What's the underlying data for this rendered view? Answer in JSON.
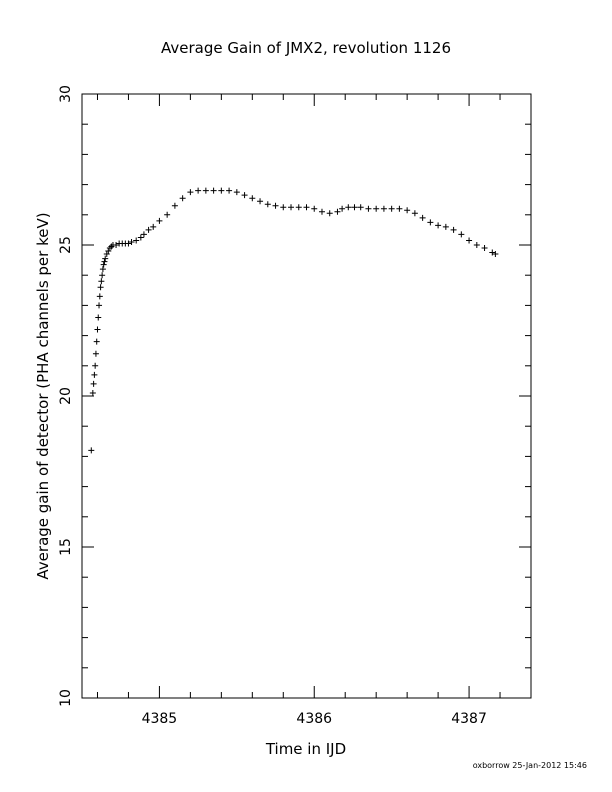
{
  "chart_data": {
    "type": "scatter",
    "title": "Average Gain of JMX2, revolution 1126",
    "xlabel": "Time in IJD",
    "ylabel": "Average gain of detector (PHA channels per keV)",
    "xlim": [
      4384.5,
      4387.4
    ],
    "ylim": [
      10,
      30
    ],
    "xticks": [
      4385,
      4386,
      4387
    ],
    "yticks": [
      10,
      15,
      20,
      25,
      30
    ],
    "grid": false,
    "legend": "none",
    "marker": "plus",
    "color": "#000000",
    "series": [
      {
        "x": [
          4384.56,
          4384.57,
          4384.575,
          4384.58,
          4384.585,
          4384.59,
          4384.595,
          4384.6,
          4384.605,
          4384.61,
          4384.615,
          4384.62,
          4384.625,
          4384.63,
          4384.635,
          4384.64,
          4384.645,
          4384.65,
          4384.66,
          4384.67,
          4384.68,
          4384.69,
          4384.7,
          4384.72,
          4384.74,
          4384.76,
          4384.78,
          4384.8,
          4384.82,
          4384.85,
          4384.88,
          4384.9,
          4384.93,
          4384.96,
          4385.0,
          4385.05,
          4385.1,
          4385.15,
          4385.2,
          4385.25,
          4385.3,
          4385.35,
          4385.4,
          4385.45,
          4385.5,
          4385.55,
          4385.6,
          4385.65,
          4385.7,
          4385.75,
          4385.8,
          4385.85,
          4385.9,
          4385.95,
          4386.0,
          4386.05,
          4386.1,
          4386.15,
          4386.18,
          4386.22,
          4386.26,
          4386.3,
          4386.35,
          4386.4,
          4386.45,
          4386.5,
          4386.55,
          4386.6,
          4386.65,
          4386.7,
          4386.75,
          4386.8,
          4386.85,
          4386.9,
          4386.95,
          4387.0,
          4387.05,
          4387.1,
          4387.15,
          4387.17
        ],
        "y": [
          18.2,
          20.1,
          20.4,
          20.7,
          21.0,
          21.4,
          21.8,
          22.2,
          22.6,
          23.0,
          23.3,
          23.6,
          23.8,
          24.0,
          24.2,
          24.35,
          24.45,
          24.55,
          24.7,
          24.8,
          24.9,
          24.95,
          25.0,
          25.0,
          25.05,
          25.05,
          25.05,
          25.05,
          25.1,
          25.15,
          25.25,
          25.35,
          25.5,
          25.6,
          25.8,
          26.0,
          26.3,
          26.55,
          26.75,
          26.8,
          26.8,
          26.8,
          26.8,
          26.8,
          26.75,
          26.65,
          26.55,
          26.45,
          26.35,
          26.3,
          26.25,
          26.25,
          26.25,
          26.25,
          26.2,
          26.1,
          26.05,
          26.1,
          26.2,
          26.25,
          26.25,
          26.25,
          26.2,
          26.2,
          26.2,
          26.2,
          26.2,
          26.15,
          26.05,
          25.9,
          25.75,
          25.65,
          25.6,
          25.5,
          25.35,
          25.15,
          25.0,
          24.9,
          24.75,
          24.7
        ]
      }
    ]
  },
  "footer": {
    "stamp": "oxborrow 25-Jan-2012 15:46"
  }
}
